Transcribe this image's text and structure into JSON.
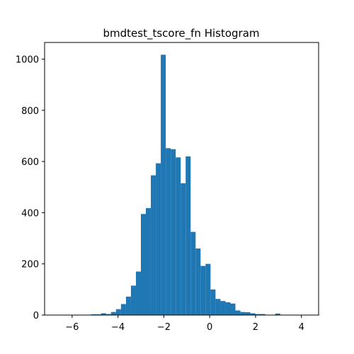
{
  "chart_data": {
    "type": "bar",
    "title": "bmdtest_tscore_fn Histogram",
    "xlabel": "",
    "ylabel": "",
    "xlim": [
      -7.2,
      4.75
    ],
    "ylim": [
      0,
      1065
    ],
    "grid": false,
    "bar_color": "#1f77b4",
    "x_ticks": [
      -6,
      -4,
      -2,
      0,
      2,
      4
    ],
    "x_tick_labels": [
      "−6",
      "−4",
      "−2",
      "0",
      "2",
      "4"
    ],
    "y_ticks": [
      0,
      200,
      400,
      600,
      800,
      1000
    ],
    "y_tick_labels": [
      "0",
      "200",
      "400",
      "600",
      "800",
      "1000"
    ],
    "bin_start": -6.69,
    "bin_width": 0.217,
    "counts": [
      1,
      0,
      1,
      0,
      0,
      0,
      0,
      3,
      3,
      7,
      4,
      12,
      23,
      43,
      72,
      115,
      170,
      395,
      418,
      546,
      593,
      1017,
      652,
      648,
      616,
      515,
      620,
      325,
      260,
      192,
      200,
      100,
      63,
      55,
      50,
      45,
      18,
      12,
      11,
      7,
      4,
      4,
      1,
      1,
      6,
      1,
      0,
      0,
      0,
      0,
      0,
      0,
      1
    ]
  }
}
